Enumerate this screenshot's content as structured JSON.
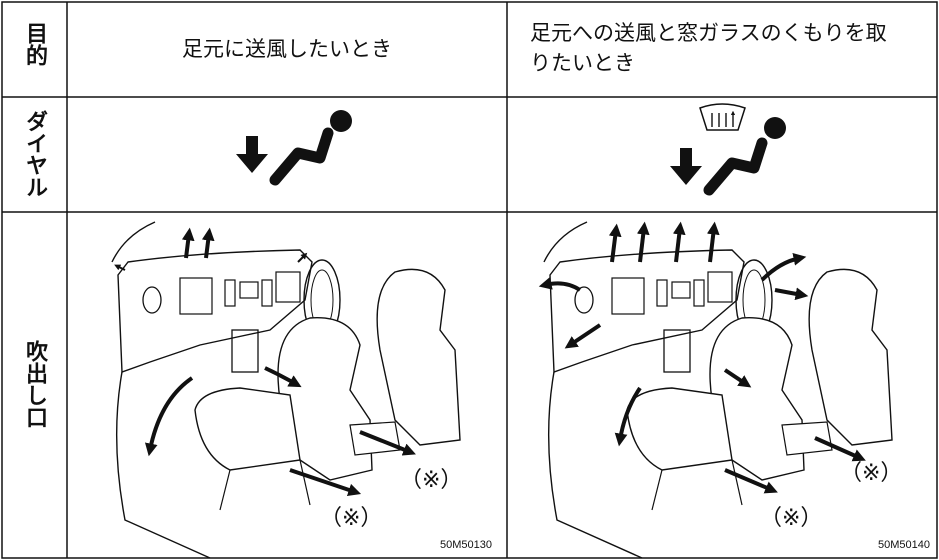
{
  "table": {
    "row_headers": [
      "目的",
      "ダイヤル",
      "吹出し口"
    ],
    "purpose": [
      "足元に送風したいとき",
      "足元への送風と窓ガラスのくもりを取りたいとき"
    ],
    "outlets": [
      {
        "note_labels": [
          "（※）",
          "（※）"
        ],
        "figure_code": "50M50130"
      },
      {
        "note_labels": [
          "（※）",
          "（※）"
        ],
        "figure_code": "50M50140"
      }
    ]
  }
}
